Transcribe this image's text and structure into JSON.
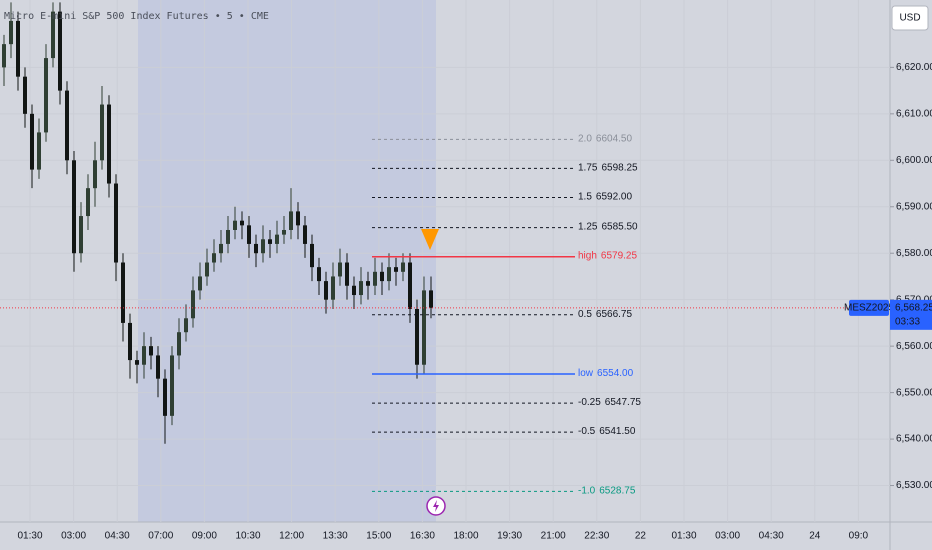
{
  "chart_data": {
    "type": "candlestick",
    "title": "Micro E-mini S&P 500 Index Futures • 5 • CME",
    "currency": "USD",
    "up_color": "#2f3f33",
    "down_color": "#121614",
    "ylim": [
      6520,
      6634.5
    ],
    "yticks": [
      {
        "value": 6530,
        "label": "6,530.00"
      },
      {
        "value": 6540,
        "label": "6,540.00"
      },
      {
        "value": 6550,
        "label": "6,550.00"
      },
      {
        "value": 6560,
        "label": "6,560.00"
      },
      {
        "value": 6570,
        "label": "6,570.00"
      },
      {
        "value": 6580,
        "label": "6,580.00"
      },
      {
        "value": 6590,
        "label": "6,590.00"
      },
      {
        "value": 6600,
        "label": "6,600.00"
      },
      {
        "value": 6610,
        "label": "6,610.00"
      },
      {
        "value": 6620,
        "label": "6,620.00"
      }
    ],
    "time_labels": [
      "01:30",
      "03:00",
      "04:30",
      "07:00",
      "09:00",
      "10:30",
      "12:00",
      "13:30",
      "15:00",
      "16:30",
      "18:00",
      "19:30",
      "21:00",
      "22:30",
      "22",
      "01:30",
      "03:00",
      "04:30",
      "24",
      "09:0"
    ],
    "candles": [
      [
        6620,
        6627,
        6616,
        6625
      ],
      [
        6625,
        6634,
        6622,
        6630
      ],
      [
        6630,
        6632,
        6615,
        6618
      ],
      [
        6618,
        6620,
        6607,
        6610
      ],
      [
        6610,
        6612,
        6594,
        6598
      ],
      [
        6598,
        6609,
        6596,
        6606
      ],
      [
        6606,
        6625,
        6604,
        6622
      ],
      [
        6622,
        6634,
        6620,
        6632
      ],
      [
        6632,
        6634,
        6612,
        6615
      ],
      [
        6615,
        6617,
        6597,
        6600
      ],
      [
        6600,
        6602,
        6576,
        6580
      ],
      [
        6580,
        6591,
        6578,
        6588
      ],
      [
        6588,
        6597,
        6585,
        6594
      ],
      [
        6594,
        6604,
        6590,
        6600
      ],
      [
        6600,
        6616,
        6598,
        6612
      ],
      [
        6612,
        6614,
        6592,
        6595
      ],
      [
        6595,
        6597,
        6574,
        6578
      ],
      [
        6578,
        6580,
        6561,
        6565
      ],
      [
        6565,
        6567,
        6553,
        6557
      ],
      [
        6557,
        6559,
        6552,
        6556
      ],
      [
        6556,
        6563,
        6553,
        6560
      ],
      [
        6560,
        6562,
        6555,
        6558
      ],
      [
        6558,
        6560,
        6549,
        6553
      ],
      [
        6553,
        6555,
        6539,
        6545
      ],
      [
        6545,
        6560,
        6543,
        6558
      ],
      [
        6558,
        6566,
        6555,
        6563
      ],
      [
        6563,
        6569,
        6561,
        6566
      ],
      [
        6566,
        6575,
        6564,
        6572
      ],
      [
        6572,
        6578,
        6570,
        6575
      ],
      [
        6575,
        6581,
        6573,
        6578
      ],
      [
        6578,
        6583,
        6576,
        6580
      ],
      [
        6580,
        6585,
        6578,
        6582
      ],
      [
        6582,
        6588,
        6580,
        6585
      ],
      [
        6585,
        6590,
        6583,
        6587
      ],
      [
        6587,
        6589,
        6583,
        6586
      ],
      [
        6586,
        6588,
        6579,
        6582
      ],
      [
        6582,
        6584,
        6577,
        6580
      ],
      [
        6580,
        6586,
        6578,
        6583
      ],
      [
        6583,
        6585,
        6579,
        6582
      ],
      [
        6582,
        6587,
        6580,
        6584
      ],
      [
        6584,
        6588,
        6582,
        6585
      ],
      [
        6585,
        6594,
        6583,
        6589
      ],
      [
        6589,
        6591,
        6583,
        6586
      ],
      [
        6586,
        6588,
        6579,
        6582
      ],
      [
        6582,
        6584,
        6574,
        6577
      ],
      [
        6577,
        6579,
        6571,
        6574
      ],
      [
        6574,
        6576,
        6567,
        6570
      ],
      [
        6570,
        6578,
        6568,
        6575
      ],
      [
        6575,
        6581,
        6573,
        6578
      ],
      [
        6578,
        6580,
        6570,
        6573
      ],
      [
        6573,
        6575,
        6568,
        6571
      ],
      [
        6571,
        6577,
        6569,
        6574
      ],
      [
        6574,
        6576,
        6570,
        6573
      ],
      [
        6573,
        6579,
        6571,
        6576
      ],
      [
        6576,
        6578,
        6571,
        6574
      ],
      [
        6574,
        6580,
        6572,
        6577
      ],
      [
        6577,
        6579,
        6573,
        6576
      ],
      [
        6576,
        6580,
        6574,
        6578
      ],
      [
        6578,
        6580,
        6565,
        6568
      ],
      [
        6568,
        6570,
        6553,
        6556
      ],
      [
        6556,
        6575,
        6554,
        6572
      ],
      [
        6572,
        6575,
        6566,
        6568.25
      ]
    ],
    "levels": [
      {
        "name": "2.0",
        "value": 6604.5,
        "value_label": "6604.50",
        "color": "#8a8f99",
        "style": "dashed"
      },
      {
        "name": "1.75",
        "value": 6598.25,
        "value_label": "6598.25",
        "color": "#131722",
        "style": "dashed"
      },
      {
        "name": "1.5",
        "value": 6592,
        "value_label": "6592.00",
        "color": "#131722",
        "style": "dashed"
      },
      {
        "name": "1.25",
        "value": 6585.5,
        "value_label": "6585.50",
        "color": "#131722",
        "style": "dashed"
      },
      {
        "name": "high",
        "value": 6579.25,
        "value_label": "6579.25",
        "color": "#f23645",
        "style": "solid"
      },
      {
        "name": "0.5",
        "value": 6566.75,
        "value_label": "6566.75",
        "color": "#131722",
        "style": "dashed"
      },
      {
        "name": "low",
        "value": 6554,
        "value_label": "6554.00",
        "color": "#2962ff",
        "style": "solid"
      },
      {
        "name": "-0.25",
        "value": 6547.75,
        "value_label": "6547.75",
        "color": "#131722",
        "style": "dashed"
      },
      {
        "name": "-0.5",
        "value": 6541.5,
        "value_label": "6541.50",
        "color": "#131722",
        "style": "dashed"
      },
      {
        "name": "-1.0",
        "value": 6528.75,
        "value_label": "6528.75",
        "color": "#089981",
        "style": "dashed"
      }
    ],
    "last_price": {
      "symbol": "MESZ2025",
      "value": 6568.25,
      "label": "6,568.25",
      "countdown": "03:33",
      "color": "#2962ff"
    }
  }
}
